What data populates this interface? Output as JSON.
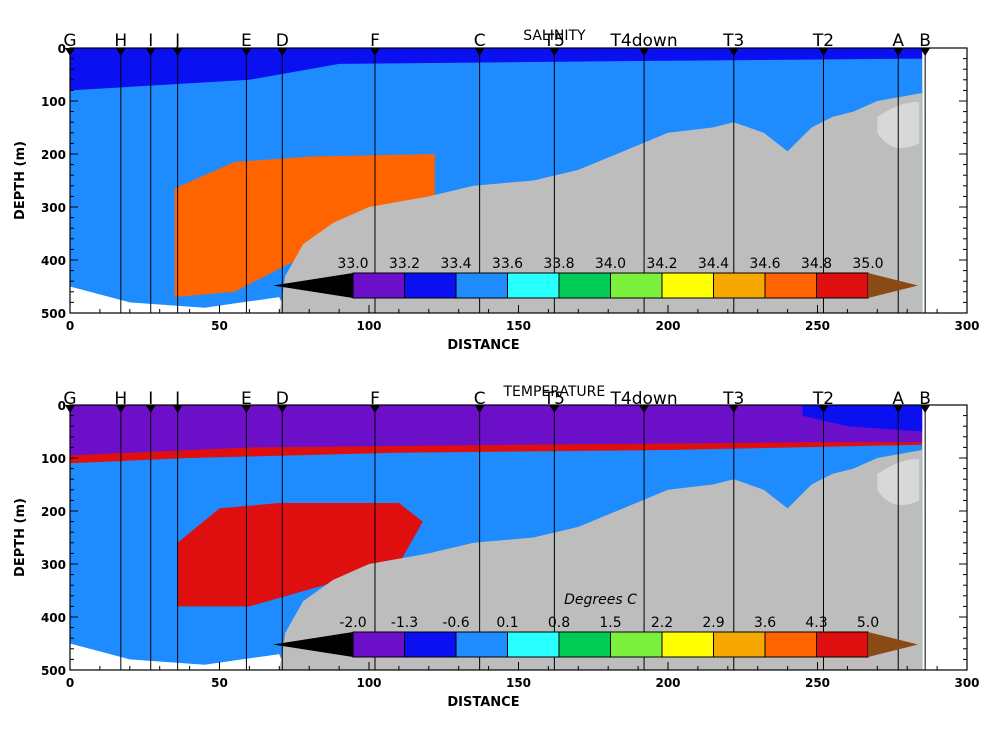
{
  "chart_data": [
    {
      "type": "heatmap",
      "title": "SALINITY",
      "xlabel": "DISTANCE",
      "ylabel": "DEPTH (m)",
      "xlim": [
        0,
        300
      ],
      "ylim": [
        500,
        0
      ],
      "x_ticks": [
        "0",
        "50",
        "100",
        "150",
        "200",
        "250",
        "300"
      ],
      "y_ticks": [
        "0",
        "100",
        "200",
        "300",
        "400",
        "500"
      ],
      "station_labels": [
        {
          "name": "G",
          "x": 0
        },
        {
          "name": "H",
          "x": 17
        },
        {
          "name": "I",
          "x": 27
        },
        {
          "name": "J",
          "x": 36
        },
        {
          "name": "E",
          "x": 59
        },
        {
          "name": "D",
          "x": 71
        },
        {
          "name": "F",
          "x": 102
        },
        {
          "name": "C",
          "x": 137
        },
        {
          "name": "T5",
          "x": 162
        },
        {
          "name": "T4down",
          "x": 192
        },
        {
          "name": "T3",
          "x": 222
        },
        {
          "name": "T2",
          "x": 252
        },
        {
          "name": "A",
          "x": 277
        },
        {
          "name": "B",
          "x": 286
        }
      ],
      "colorbar_title": "",
      "colorbar_levels": [
        "33.0",
        "33.2",
        "33.4",
        "33.6",
        "33.8",
        "34.0",
        "34.2",
        "34.4",
        "34.6",
        "34.8",
        "35.0"
      ],
      "colors": [
        "#000000",
        "#6c0fc8",
        "#0a10f0",
        "#1e8cff",
        "#28ffff",
        "#00cc55",
        "#7cf03c",
        "#ffff00",
        "#f7a800",
        "#ff6400",
        "#e00f0f",
        "#8a4a14"
      ],
      "bathymetry_color": "#bdbdbd"
    },
    {
      "type": "heatmap",
      "title": "TEMPERATURE",
      "xlabel": "DISTANCE",
      "ylabel": "DEPTH (m)",
      "xlim": [
        0,
        300
      ],
      "ylim": [
        500,
        0
      ],
      "x_ticks": [
        "0",
        "50",
        "100",
        "150",
        "200",
        "250",
        "300"
      ],
      "y_ticks": [
        "0",
        "100",
        "200",
        "300",
        "400",
        "500"
      ],
      "station_labels": [
        {
          "name": "G",
          "x": 0
        },
        {
          "name": "H",
          "x": 17
        },
        {
          "name": "I",
          "x": 27
        },
        {
          "name": "J",
          "x": 36
        },
        {
          "name": "E",
          "x": 59
        },
        {
          "name": "D",
          "x": 71
        },
        {
          "name": "F",
          "x": 102
        },
        {
          "name": "C",
          "x": 137
        },
        {
          "name": "T5",
          "x": 162
        },
        {
          "name": "T4down",
          "x": 192
        },
        {
          "name": "T3",
          "x": 222
        },
        {
          "name": "T2",
          "x": 252
        },
        {
          "name": "A",
          "x": 277
        },
        {
          "name": "B",
          "x": 286
        }
      ],
      "colorbar_title": "Degrees C",
      "colorbar_levels": [
        "-2.0",
        "-1.3",
        "-0.6",
        "0.1",
        "0.8",
        "1.5",
        "2.2",
        "2.9",
        "3.6",
        "4.3",
        "5.0"
      ],
      "colors": [
        "#000000",
        "#6c0fc8",
        "#0a10f0",
        "#1e8cff",
        "#28ffff",
        "#00cc55",
        "#7cf03c",
        "#ffff00",
        "#f7a800",
        "#ff6400",
        "#e00f0f",
        "#8a4a14"
      ],
      "bathymetry_color": "#bdbdbd"
    }
  ]
}
